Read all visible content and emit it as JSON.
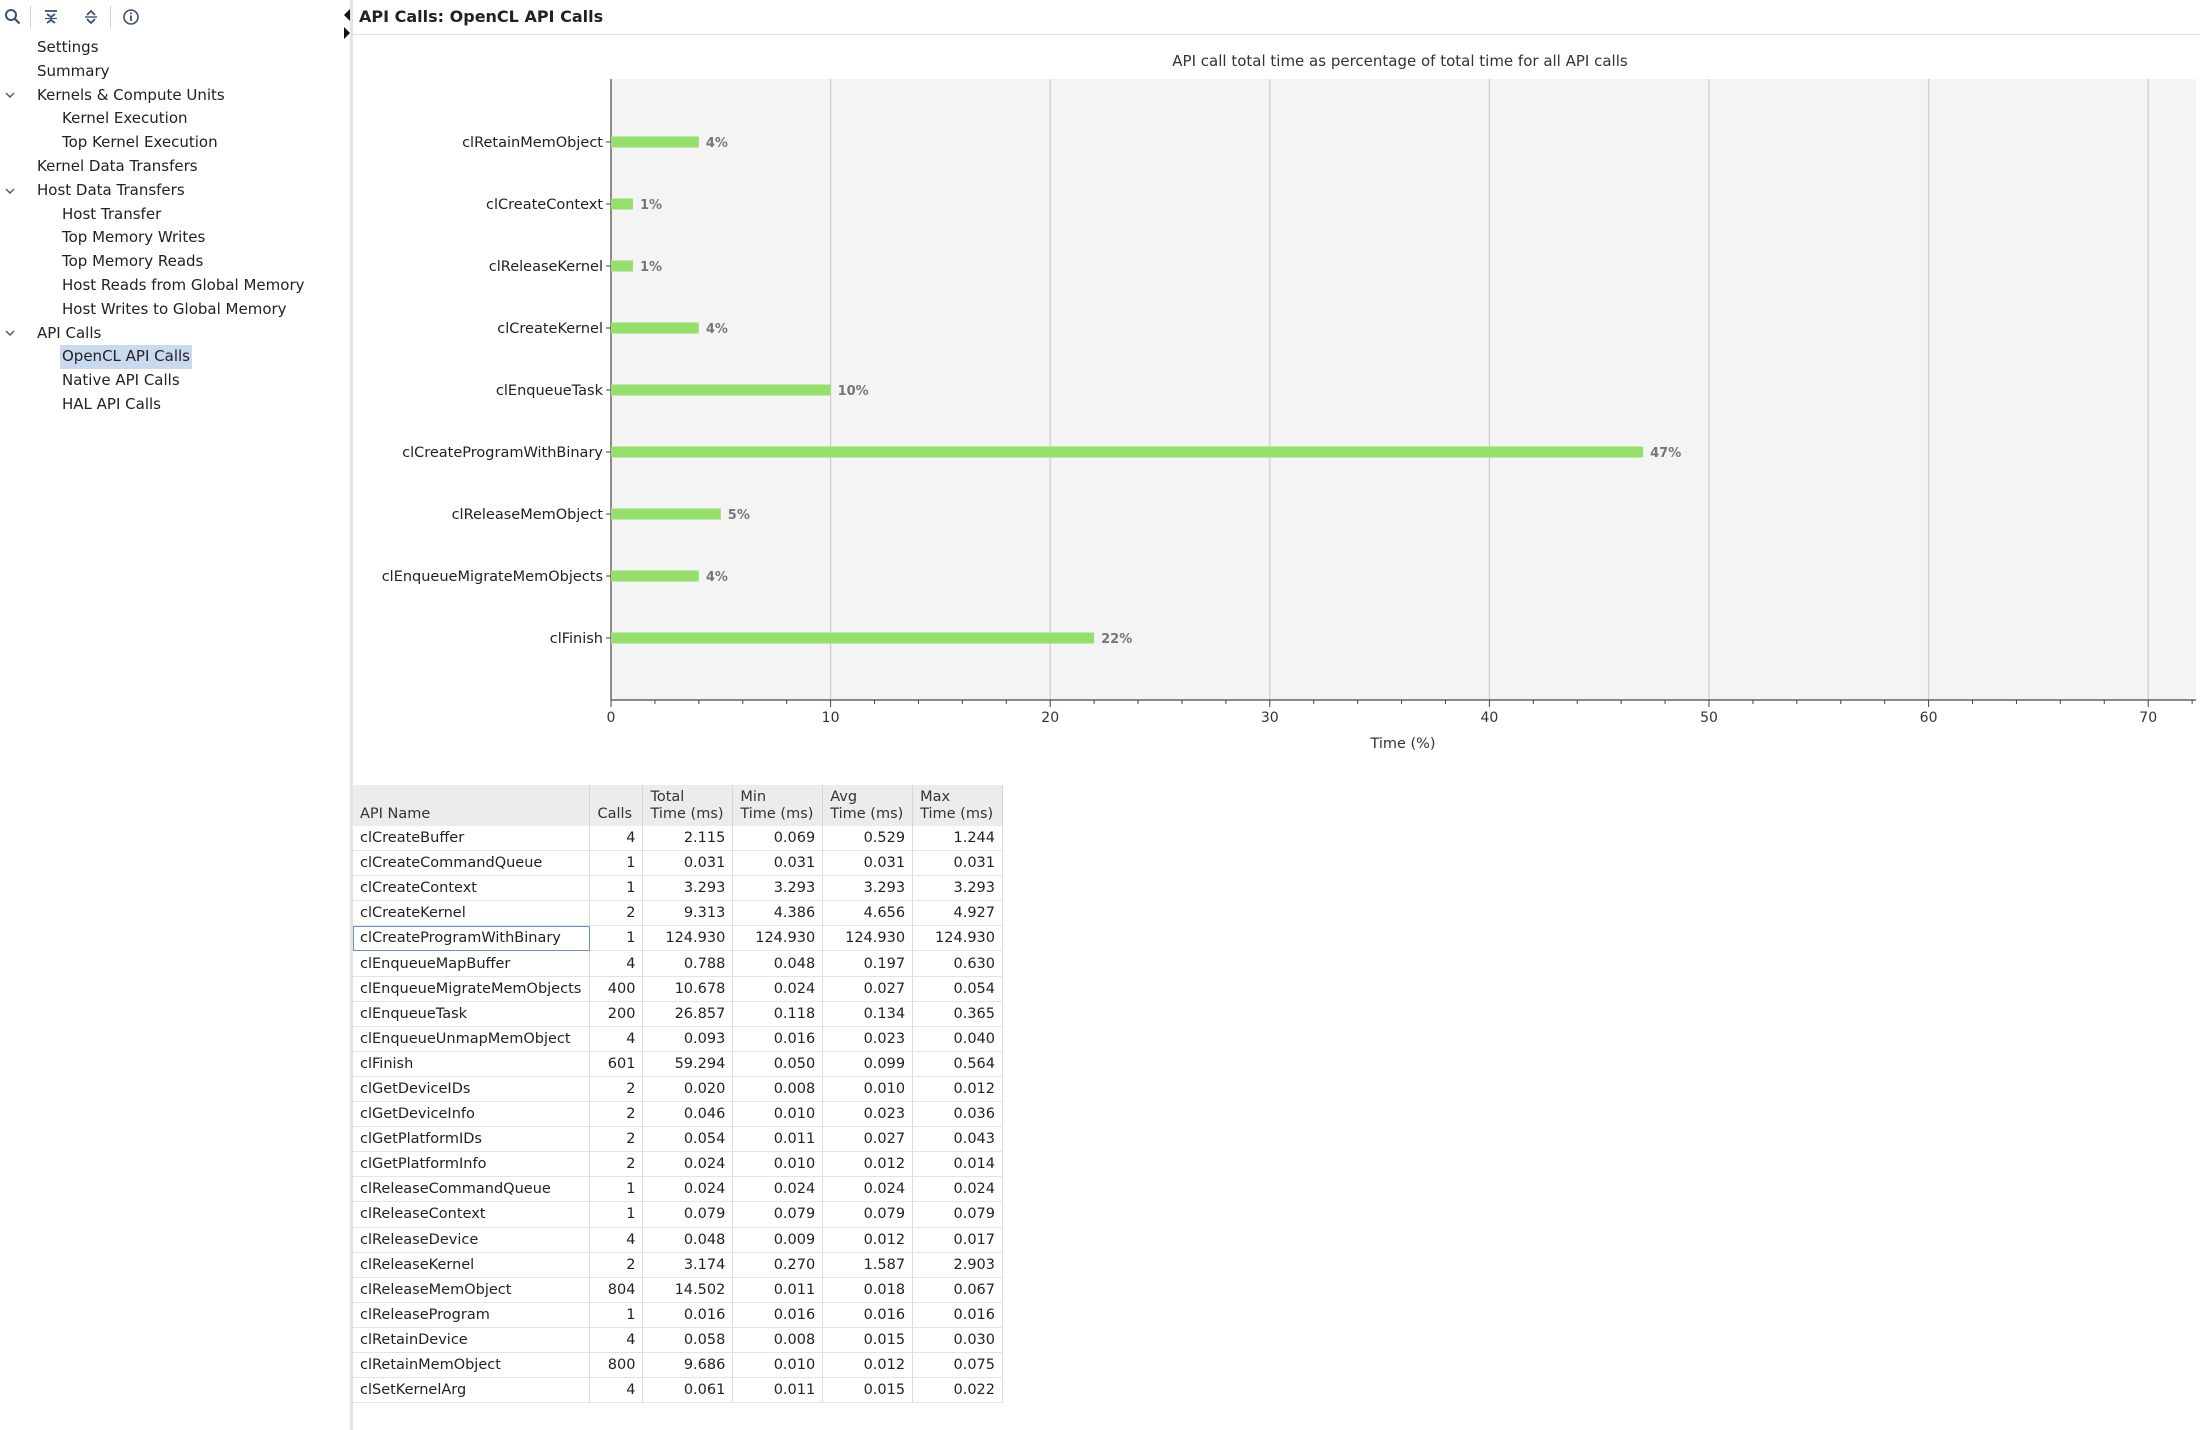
{
  "toolbar": {
    "icons": [
      "search-icon",
      "collapse-all-icon",
      "expand-all-icon",
      "info-icon"
    ]
  },
  "tree": [
    {
      "label": "Settings",
      "level": 1
    },
    {
      "label": "Summary",
      "level": 1
    },
    {
      "label": "Kernels & Compute Units",
      "level": 1,
      "expanded": true
    },
    {
      "label": "Kernel Execution",
      "level": 2
    },
    {
      "label": "Top Kernel Execution",
      "level": 2
    },
    {
      "label": "Kernel Data Transfers",
      "level": 1
    },
    {
      "label": "Host Data Transfers",
      "level": 1,
      "expanded": true
    },
    {
      "label": "Host Transfer",
      "level": 2
    },
    {
      "label": "Top Memory Writes",
      "level": 2
    },
    {
      "label": "Top Memory Reads",
      "level": 2
    },
    {
      "label": "Host Reads from Global Memory",
      "level": 2
    },
    {
      "label": "Host Writes to Global Memory",
      "level": 2
    },
    {
      "label": "API Calls",
      "level": 1,
      "expanded": true
    },
    {
      "label": "OpenCL API Calls",
      "level": 2,
      "selected": true
    },
    {
      "label": "Native API Calls",
      "level": 2
    },
    {
      "label": "HAL API Calls",
      "level": 2
    }
  ],
  "view_title": "API Calls: OpenCL API Calls",
  "chart_data": {
    "type": "bar",
    "orientation": "horizontal",
    "title": "API call total time as percentage of total time for all API calls",
    "xlabel": "Time (%)",
    "ylabel": "",
    "xlim": [
      0,
      72
    ],
    "xticks": [
      0,
      10,
      20,
      30,
      40,
      50,
      60,
      70
    ],
    "grid": true,
    "bar_color": "#95e06b",
    "categories": [
      "clRetainMemObject",
      "clCreateContext",
      "clReleaseKernel",
      "clCreateKernel",
      "clEnqueueTask",
      "clCreateProgramWithBinary",
      "clReleaseMemObject",
      "clEnqueueMigrateMemObjects",
      "clFinish"
    ],
    "values": [
      4,
      1,
      1,
      4,
      10,
      47,
      5,
      4,
      22
    ],
    "value_labels": [
      "4%",
      "1%",
      "1%",
      "4%",
      "10%",
      "47%",
      "5%",
      "4%",
      "22%"
    ]
  },
  "table": {
    "columns": [
      {
        "line1": "API Name",
        "line2": ""
      },
      {
        "line1": "Calls",
        "line2": ""
      },
      {
        "line1": "Total",
        "line2": "Time (ms)"
      },
      {
        "line1": "Min",
        "line2": "Time (ms)"
      },
      {
        "line1": "Avg",
        "line2": "Time (ms)"
      },
      {
        "line1": "Max",
        "line2": "Time (ms)"
      }
    ],
    "selected_row": 4,
    "rows": [
      [
        "clCreateBuffer",
        "4",
        "2.115",
        "0.069",
        "0.529",
        "1.244"
      ],
      [
        "clCreateCommandQueue",
        "1",
        "0.031",
        "0.031",
        "0.031",
        "0.031"
      ],
      [
        "clCreateContext",
        "1",
        "3.293",
        "3.293",
        "3.293",
        "3.293"
      ],
      [
        "clCreateKernel",
        "2",
        "9.313",
        "4.386",
        "4.656",
        "4.927"
      ],
      [
        "clCreateProgramWithBinary",
        "1",
        "124.930",
        "124.930",
        "124.930",
        "124.930"
      ],
      [
        "clEnqueueMapBuffer",
        "4",
        "0.788",
        "0.048",
        "0.197",
        "0.630"
      ],
      [
        "clEnqueueMigrateMemObjects",
        "400",
        "10.678",
        "0.024",
        "0.027",
        "0.054"
      ],
      [
        "clEnqueueTask",
        "200",
        "26.857",
        "0.118",
        "0.134",
        "0.365"
      ],
      [
        "clEnqueueUnmapMemObject",
        "4",
        "0.093",
        "0.016",
        "0.023",
        "0.040"
      ],
      [
        "clFinish",
        "601",
        "59.294",
        "0.050",
        "0.099",
        "0.564"
      ],
      [
        "clGetDeviceIDs",
        "2",
        "0.020",
        "0.008",
        "0.010",
        "0.012"
      ],
      [
        "clGetDeviceInfo",
        "2",
        "0.046",
        "0.010",
        "0.023",
        "0.036"
      ],
      [
        "clGetPlatformIDs",
        "2",
        "0.054",
        "0.011",
        "0.027",
        "0.043"
      ],
      [
        "clGetPlatformInfo",
        "2",
        "0.024",
        "0.010",
        "0.012",
        "0.014"
      ],
      [
        "clReleaseCommandQueue",
        "1",
        "0.024",
        "0.024",
        "0.024",
        "0.024"
      ],
      [
        "clReleaseContext",
        "1",
        "0.079",
        "0.079",
        "0.079",
        "0.079"
      ],
      [
        "clReleaseDevice",
        "4",
        "0.048",
        "0.009",
        "0.012",
        "0.017"
      ],
      [
        "clReleaseKernel",
        "2",
        "3.174",
        "0.270",
        "1.587",
        "2.903"
      ],
      [
        "clReleaseMemObject",
        "804",
        "14.502",
        "0.011",
        "0.018",
        "0.067"
      ],
      [
        "clReleaseProgram",
        "1",
        "0.016",
        "0.016",
        "0.016",
        "0.016"
      ],
      [
        "clRetainDevice",
        "4",
        "0.058",
        "0.008",
        "0.015",
        "0.030"
      ],
      [
        "clRetainMemObject",
        "800",
        "9.686",
        "0.010",
        "0.012",
        "0.075"
      ],
      [
        "clSetKernelArg",
        "4",
        "0.061",
        "0.011",
        "0.015",
        "0.022"
      ]
    ]
  }
}
